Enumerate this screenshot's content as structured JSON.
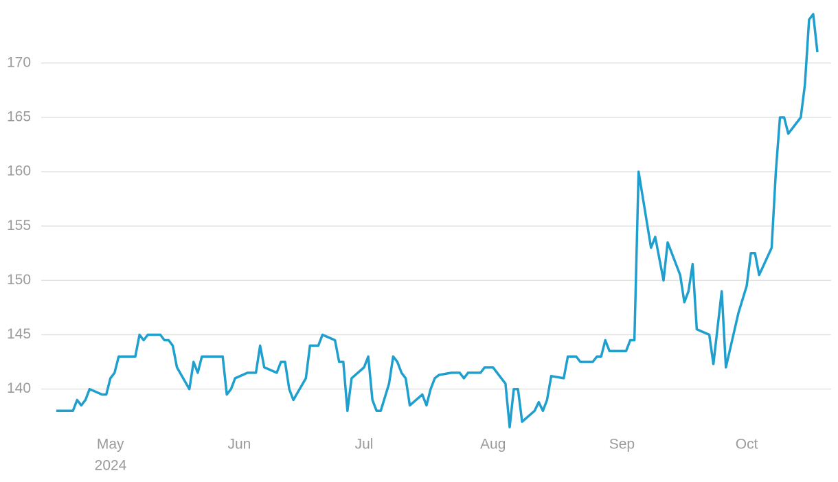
{
  "chart_data": {
    "type": "line",
    "x": [
      "2024-04-18",
      "2024-04-22",
      "2024-04-23",
      "2024-04-24",
      "2024-04-25",
      "2024-04-26",
      "2024-04-29",
      "2024-04-30",
      "2024-05-01",
      "2024-05-02",
      "2024-05-03",
      "2024-05-06",
      "2024-05-07",
      "2024-05-08",
      "2024-05-09",
      "2024-05-10",
      "2024-05-13",
      "2024-05-14",
      "2024-05-15",
      "2024-05-16",
      "2024-05-17",
      "2024-05-20",
      "2024-05-21",
      "2024-05-22",
      "2024-05-23",
      "2024-05-24",
      "2024-05-28",
      "2024-05-29",
      "2024-05-30",
      "2024-05-31",
      "2024-06-03",
      "2024-06-04",
      "2024-06-05",
      "2024-06-06",
      "2024-06-07",
      "2024-06-10",
      "2024-06-11",
      "2024-06-12",
      "2024-06-13",
      "2024-06-14",
      "2024-06-17",
      "2024-06-18",
      "2024-06-20",
      "2024-06-21",
      "2024-06-24",
      "2024-06-25",
      "2024-06-26",
      "2024-06-27",
      "2024-06-28",
      "2024-07-01",
      "2024-07-02",
      "2024-07-03",
      "2024-07-04",
      "2024-07-05",
      "2024-07-07",
      "2024-07-08",
      "2024-07-09",
      "2024-07-10",
      "2024-07-11",
      "2024-07-12",
      "2024-07-15",
      "2024-07-16",
      "2024-07-17",
      "2024-07-18",
      "2024-07-19",
      "2024-07-22",
      "2024-07-24",
      "2024-07-25",
      "2024-07-26",
      "2024-07-29",
      "2024-07-30",
      "2024-08-01",
      "2024-08-04",
      "2024-08-05",
      "2024-08-06",
      "2024-08-07",
      "2024-08-08",
      "2024-08-11",
      "2024-08-12",
      "2024-08-13",
      "2024-08-14",
      "2024-08-15",
      "2024-08-18",
      "2024-08-19",
      "2024-08-21",
      "2024-08-22",
      "2024-08-25",
      "2024-08-26",
      "2024-08-27",
      "2024-08-28",
      "2024-08-29",
      "2024-09-02",
      "2024-09-03",
      "2024-09-04",
      "2024-09-05",
      "2024-09-08",
      "2024-09-09",
      "2024-09-11",
      "2024-09-12",
      "2024-09-15",
      "2024-09-16",
      "2024-09-17",
      "2024-09-18",
      "2024-09-19",
      "2024-09-22",
      "2024-09-23",
      "2024-09-25",
      "2024-09-26",
      "2024-09-29",
      "2024-10-01",
      "2024-10-02",
      "2024-10-03",
      "2024-10-04",
      "2024-10-07",
      "2024-10-08",
      "2024-10-09",
      "2024-10-10",
      "2024-10-11",
      "2024-10-14",
      "2024-10-15",
      "2024-10-16",
      "2024-10-17",
      "2024-10-18"
    ],
    "values": [
      138,
      138,
      139,
      138.5,
      139,
      140,
      139.5,
      139.5,
      141,
      141.5,
      143,
      143,
      143,
      145,
      144.5,
      145,
      145,
      144.5,
      144.5,
      144,
      142,
      140,
      142.5,
      141.5,
      143,
      143,
      143,
      139.5,
      140,
      141,
      141.5,
      141.5,
      141.5,
      144,
      142,
      141.5,
      142.5,
      142.5,
      140,
      139,
      141,
      144,
      144,
      145,
      144.5,
      142.5,
      142.5,
      138,
      141,
      142,
      143,
      139,
      138,
      138,
      140.5,
      143,
      142.5,
      141.5,
      141,
      138.5,
      139.5,
      138.5,
      140,
      141,
      141.3,
      141.5,
      141.5,
      141,
      141.5,
      141.5,
      142,
      142,
      140.5,
      136.5,
      140,
      140,
      137,
      138,
      138.8,
      138,
      139,
      141.2,
      141,
      143,
      143,
      142.5,
      142.5,
      143,
      143,
      144.5,
      143.5,
      143.5,
      144.5,
      144.5,
      160,
      153,
      154,
      150,
      153.5,
      150.5,
      148,
      149,
      151.5,
      145.5,
      145,
      142.3,
      149,
      142,
      147,
      149.5,
      152.5,
      152.5,
      150.5,
      153,
      160,
      165,
      165,
      163.5,
      165,
      168,
      174,
      174.5,
      171
    ],
    "color": "#1e9fcd",
    "xlim": [
      "2024-04-18",
      "2024-10-18"
    ],
    "xticks": [
      {
        "value": "2024-05-01",
        "label": "May"
      },
      {
        "value": "2024-06-01",
        "label": "Jun"
      },
      {
        "value": "2024-07-01",
        "label": "Jul"
      },
      {
        "value": "2024-08-01",
        "label": "Aug"
      },
      {
        "value": "2024-09-01",
        "label": "Sep"
      },
      {
        "value": "2024-10-01",
        "label": "Oct"
      }
    ],
    "xtick_year": "2024",
    "ylim": [
      136,
      175.8
    ],
    "yticks": [
      140,
      145,
      150,
      155,
      160,
      165,
      170
    ],
    "grid": true
  }
}
